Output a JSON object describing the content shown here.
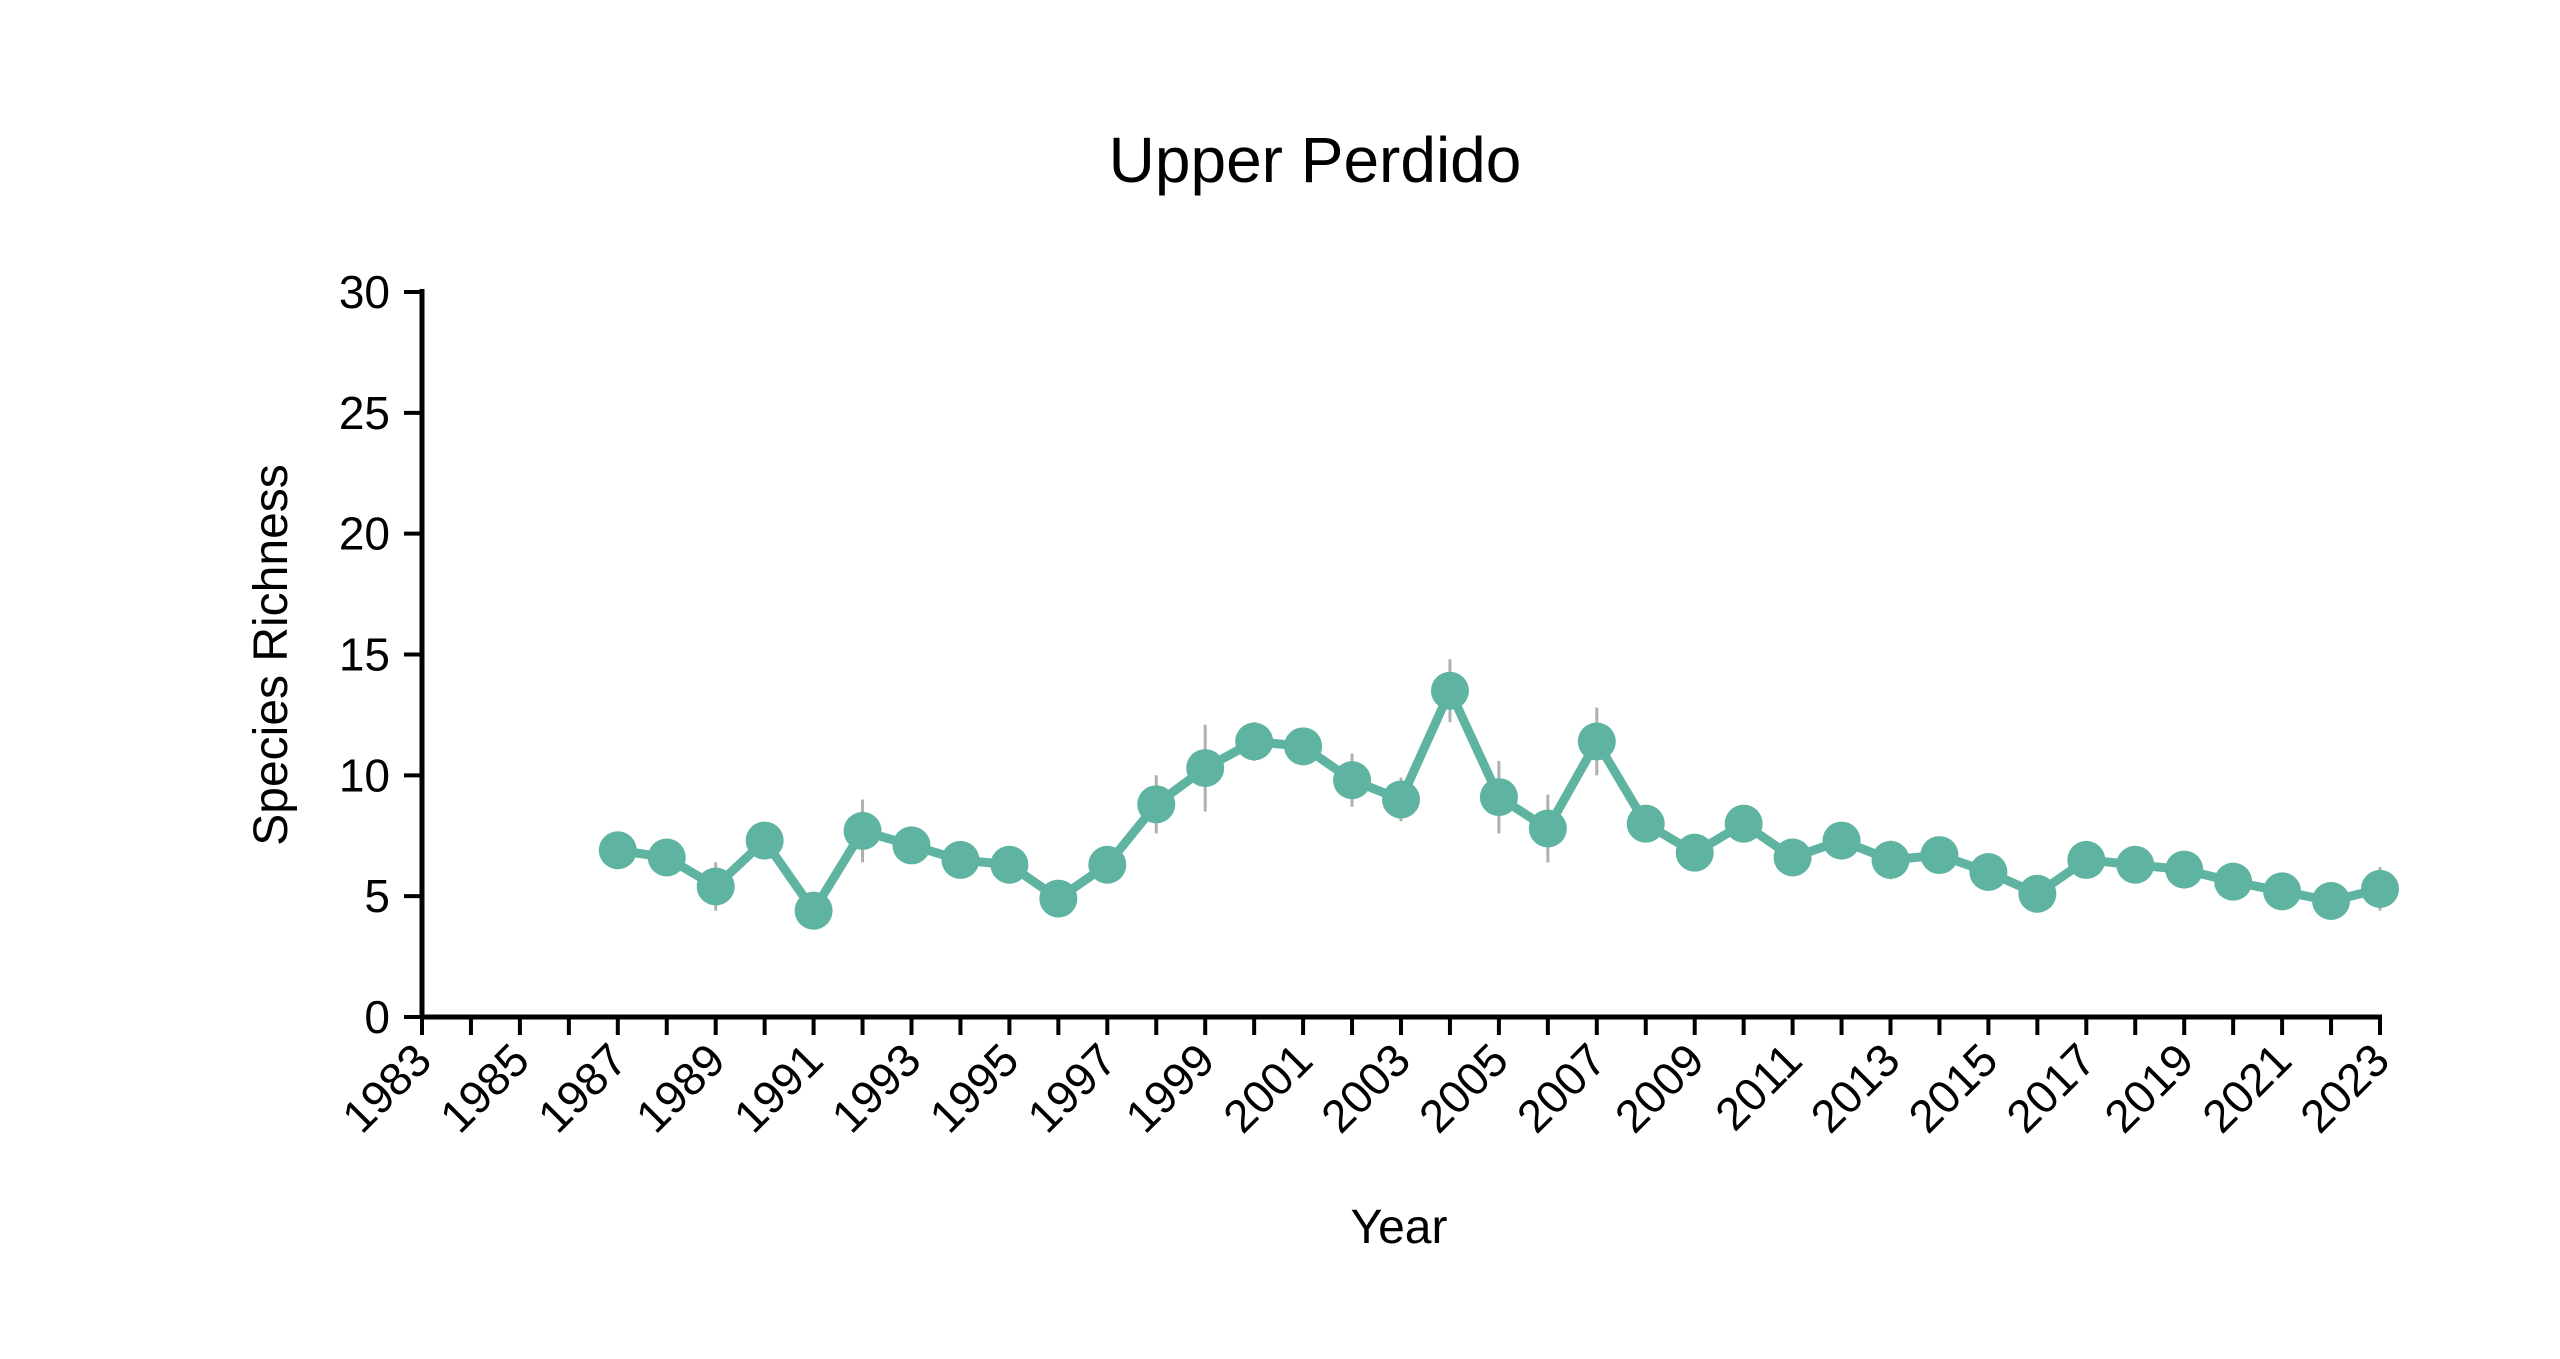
{
  "chart_data": {
    "type": "line",
    "title": "Upper Perdido",
    "xlabel": "Year",
    "ylabel": "Species Richness",
    "xlim": [
      1983,
      2023
    ],
    "ylim": [
      0,
      30
    ],
    "y_ticks": [
      0,
      5,
      10,
      15,
      20,
      25,
      30
    ],
    "x_tick_labels": [
      "1983",
      "1985",
      "1987",
      "1989",
      "1991",
      "1993",
      "1995",
      "1997",
      "1999",
      "2001",
      "2003",
      "2005",
      "2007",
      "2009",
      "2011",
      "2013",
      "2015",
      "2017",
      "2019",
      "2021",
      "2023"
    ],
    "grid": false,
    "legend": "none",
    "color": "#5fb3a1",
    "errorbar_color": "#b0b0b0",
    "series": [
      {
        "x": [
          1987,
          1988,
          1989,
          1990,
          1991,
          1992,
          1993,
          1994,
          1995,
          1996,
          1997,
          1998,
          1999,
          2000,
          2001,
          2002,
          2003,
          2004,
          2005,
          2006,
          2007,
          2008,
          2009,
          2010,
          2011,
          2012,
          2013,
          2014,
          2015,
          2016,
          2017,
          2018,
          2019,
          2020,
          2021,
          2022,
          2023
        ],
        "y": [
          6.9,
          6.6,
          5.4,
          7.3,
          4.4,
          7.7,
          7.1,
          6.5,
          6.3,
          4.9,
          6.3,
          8.8,
          10.3,
          11.4,
          11.2,
          9.8,
          9.0,
          13.5,
          9.1,
          7.8,
          11.4,
          8.0,
          6.8,
          8.0,
          6.6,
          7.3,
          6.5,
          6.7,
          6.0,
          5.1,
          6.5,
          6.3,
          6.1,
          5.6,
          5.2,
          4.8,
          5.3
        ],
        "err": [
          0.5,
          0.5,
          1.0,
          0.6,
          0.7,
          1.3,
          0.5,
          0.5,
          0.5,
          0.4,
          0.6,
          1.2,
          1.8,
          0.8,
          0.6,
          1.1,
          0.9,
          1.3,
          1.5,
          1.4,
          1.4,
          0.6,
          0.5,
          0.7,
          0.6,
          0.7,
          0.8,
          0.5,
          0.5,
          0.5,
          0.6,
          0.5,
          0.5,
          0.4,
          0.6,
          0.5,
          0.9
        ]
      }
    ]
  }
}
